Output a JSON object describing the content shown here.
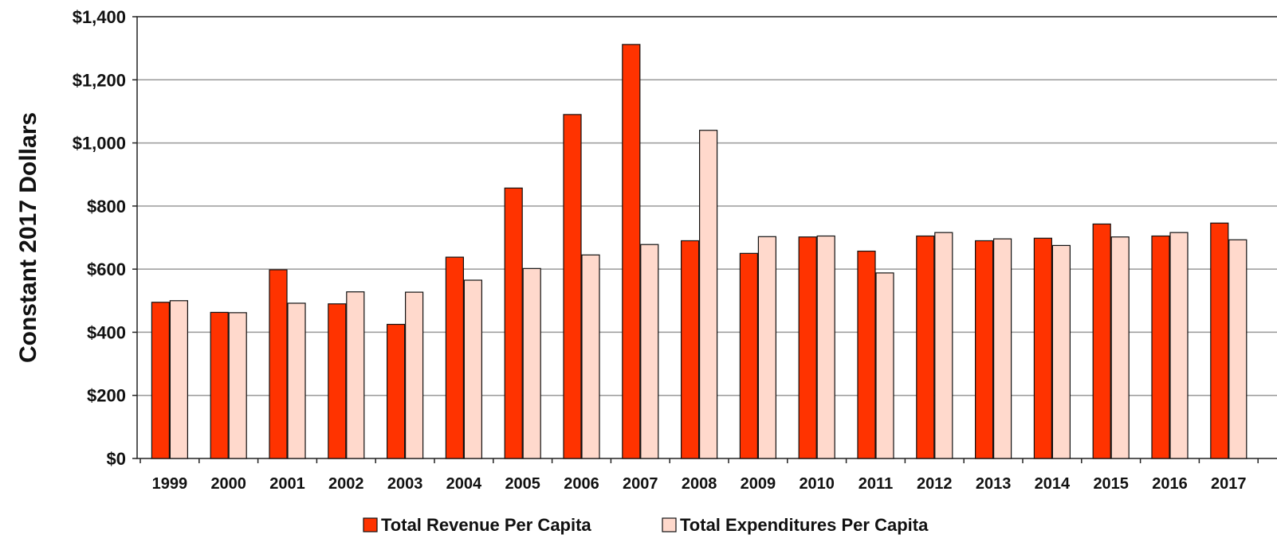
{
  "chart_data": {
    "type": "bar",
    "title": "",
    "xlabel": "",
    "ylabel": "Constant 2017 Dollars",
    "categories": [
      "1999",
      "2000",
      "2001",
      "2002",
      "2003",
      "2004",
      "2005",
      "2006",
      "2007",
      "2008",
      "2009",
      "2010",
      "2011",
      "2012",
      "2013",
      "2014",
      "2015",
      "2016",
      "2017"
    ],
    "series": [
      {
        "name": "Total Revenue Per Capita",
        "color": "#ff3300",
        "values": [
          495,
          463,
          598,
          490,
          425,
          638,
          857,
          1090,
          1312,
          690,
          650,
          702,
          657,
          705,
          690,
          698,
          743,
          705,
          746
        ]
      },
      {
        "name": "Total Expenditures Per Capita",
        "color": "#ffd9cc",
        "values": [
          500,
          462,
          492,
          528,
          527,
          565,
          602,
          645,
          678,
          1040,
          703,
          705,
          588,
          716,
          696,
          675,
          702,
          716,
          693
        ]
      }
    ],
    "ylim": [
      0,
      1400
    ],
    "yticks": [
      0,
      200,
      400,
      600,
      800,
      1000,
      1200,
      1400
    ],
    "ytick_labels": [
      "$0",
      "$200",
      "$400",
      "$600",
      "$800",
      "$1,000",
      "$1,200",
      "$1,400"
    ],
    "grid": true,
    "legend_position": "bottom"
  }
}
